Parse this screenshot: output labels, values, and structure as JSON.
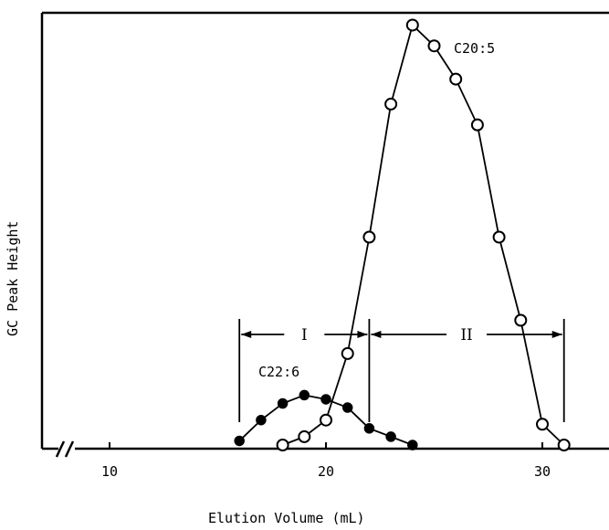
{
  "chart_data": {
    "type": "line",
    "title": "",
    "xlabel": "Elution Volume (mL)",
    "ylabel": "GC Peak Height",
    "xlim": [
      7,
      33
    ],
    "ylim": [
      0,
      105
    ],
    "xticks": [
      10,
      20,
      30
    ],
    "tick_labels": [
      "10",
      "20",
      "30"
    ],
    "series": [
      {
        "name": "C20:5",
        "marker": "open-circle",
        "x": [
          18,
          19,
          20,
          21,
          22,
          23,
          24,
          25,
          26,
          27,
          28,
          29,
          30,
          31
        ],
        "y": [
          0,
          2,
          6,
          22,
          50,
          82,
          101,
          96,
          88,
          77,
          50,
          30,
          5,
          0
        ]
      },
      {
        "name": "C22:6",
        "marker": "filled-circle",
        "x": [
          16,
          17,
          18,
          19,
          20,
          21,
          22,
          23,
          24
        ],
        "y": [
          1,
          6,
          10,
          12,
          11,
          9,
          4,
          2,
          0
        ]
      }
    ],
    "regions": [
      {
        "label": "I",
        "x_start": 16,
        "x_end": 22
      },
      {
        "label": "II",
        "x_start": 22,
        "x_end": 31
      }
    ],
    "axis_break": true,
    "grid": false
  }
}
